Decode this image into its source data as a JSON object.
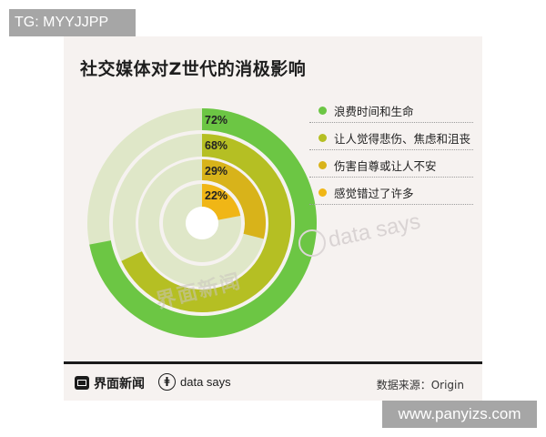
{
  "watermark_top": "TG: MYYJJPP",
  "watermark_bottom": "www.panyizs.com",
  "title": "社交媒体对Z世代的消极影响",
  "chart_data": {
    "type": "radial-bar",
    "title": "社交媒体对Z世代的消极影响",
    "categories": [
      "浪费时间和生命",
      "让人觉得悲伤、焦虑和沮丧",
      "伤害自尊或让人不安",
      "感觉错过了许多"
    ],
    "values": [
      72,
      68,
      29,
      22
    ],
    "unit": "%",
    "colors": [
      "#6cc644",
      "#b5bf23",
      "#d8b31a",
      "#f0b616"
    ],
    "track_color": "#dfe7c8",
    "range": [
      0,
      100
    ]
  },
  "labels": [
    "72%",
    "68%",
    "29%",
    "22%"
  ],
  "legend": [
    {
      "label": "浪费时间和生命",
      "color": "#6cc644"
    },
    {
      "label": "让人觉得悲伤、焦虑和沮丧",
      "color": "#b5bf23"
    },
    {
      "label": "伤害自尊或让人不安",
      "color": "#d8b31a"
    },
    {
      "label": "感觉错过了许多",
      "color": "#f0b616"
    }
  ],
  "watermarks": {
    "brand_cn": "界面新闻",
    "brand_en": "data says"
  },
  "footer": {
    "brand_cn": "界面新闻",
    "brand_en": "data says",
    "source": "数据来源：Origin"
  }
}
